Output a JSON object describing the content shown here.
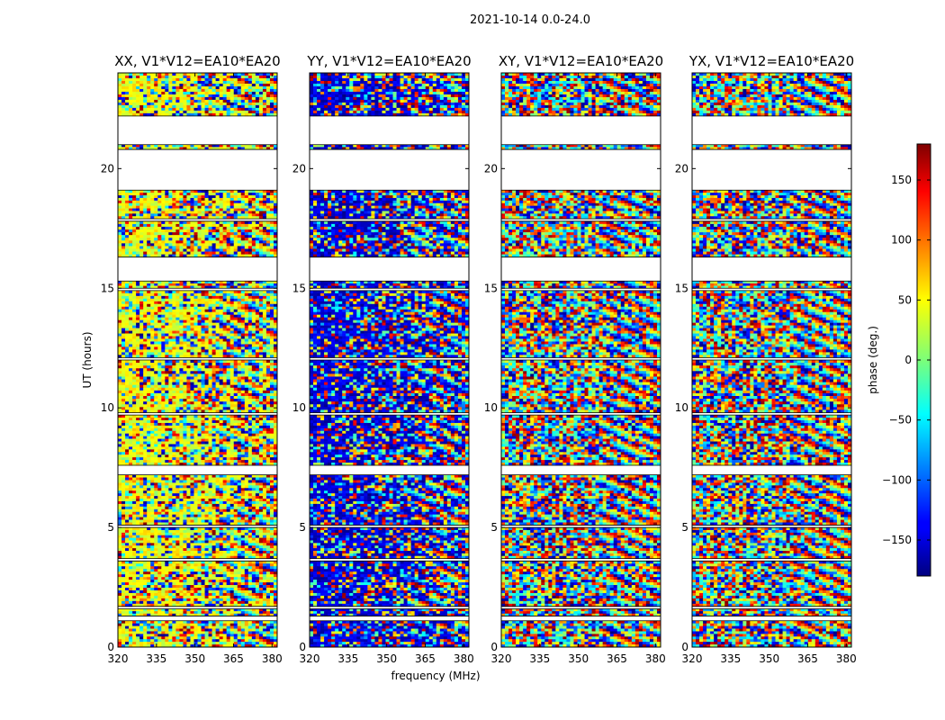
{
  "figure_title": "2021-10-14 0.0-24.0",
  "chart_data": {
    "type": "heatmap",
    "colormap": "jet",
    "xlabel": "frequency (MHz)",
    "ylabel": "UT (hours)",
    "xlim": [
      320,
      382
    ],
    "ylim": [
      0,
      24
    ],
    "x_ticks": [
      320,
      335,
      350,
      365,
      380
    ],
    "y_ticks": [
      0,
      5,
      10,
      15,
      20
    ],
    "panels": [
      {
        "title": "XX, V1*V12=EA10*EA20",
        "dominant_phase_low_ut": 40,
        "dominant_phase_high_ut": 40
      },
      {
        "title": "YY, V1*V12=EA10*EA20",
        "dominant_phase_low_ut": -150,
        "dominant_phase_high_ut": -150
      },
      {
        "title": "XY, V1*V12=EA10*EA20",
        "dominant_phase_low_ut": null,
        "dominant_phase_high_ut": null
      },
      {
        "title": "YX, V1*V12=EA10*EA20",
        "dominant_phase_low_ut": null,
        "dominant_phase_high_ut": null
      }
    ],
    "data_blocks_ut": [
      [
        0.0,
        1.1
      ],
      [
        1.3,
        1.6
      ],
      [
        1.7,
        3.6
      ],
      [
        3.7,
        5.0
      ],
      [
        5.1,
        7.2
      ],
      [
        7.6,
        9.7
      ],
      [
        9.8,
        12.0
      ],
      [
        12.1,
        14.9
      ],
      [
        15.0,
        15.3
      ],
      [
        16.3,
        17.8
      ],
      [
        17.9,
        19.1
      ],
      [
        20.8,
        21.0
      ],
      [
        22.2,
        24.0
      ]
    ],
    "colorbar": {
      "label": "phase (deg.)",
      "range": [
        -180,
        180
      ],
      "ticks": [
        -150,
        -100,
        -50,
        0,
        50,
        100,
        150
      ]
    }
  }
}
